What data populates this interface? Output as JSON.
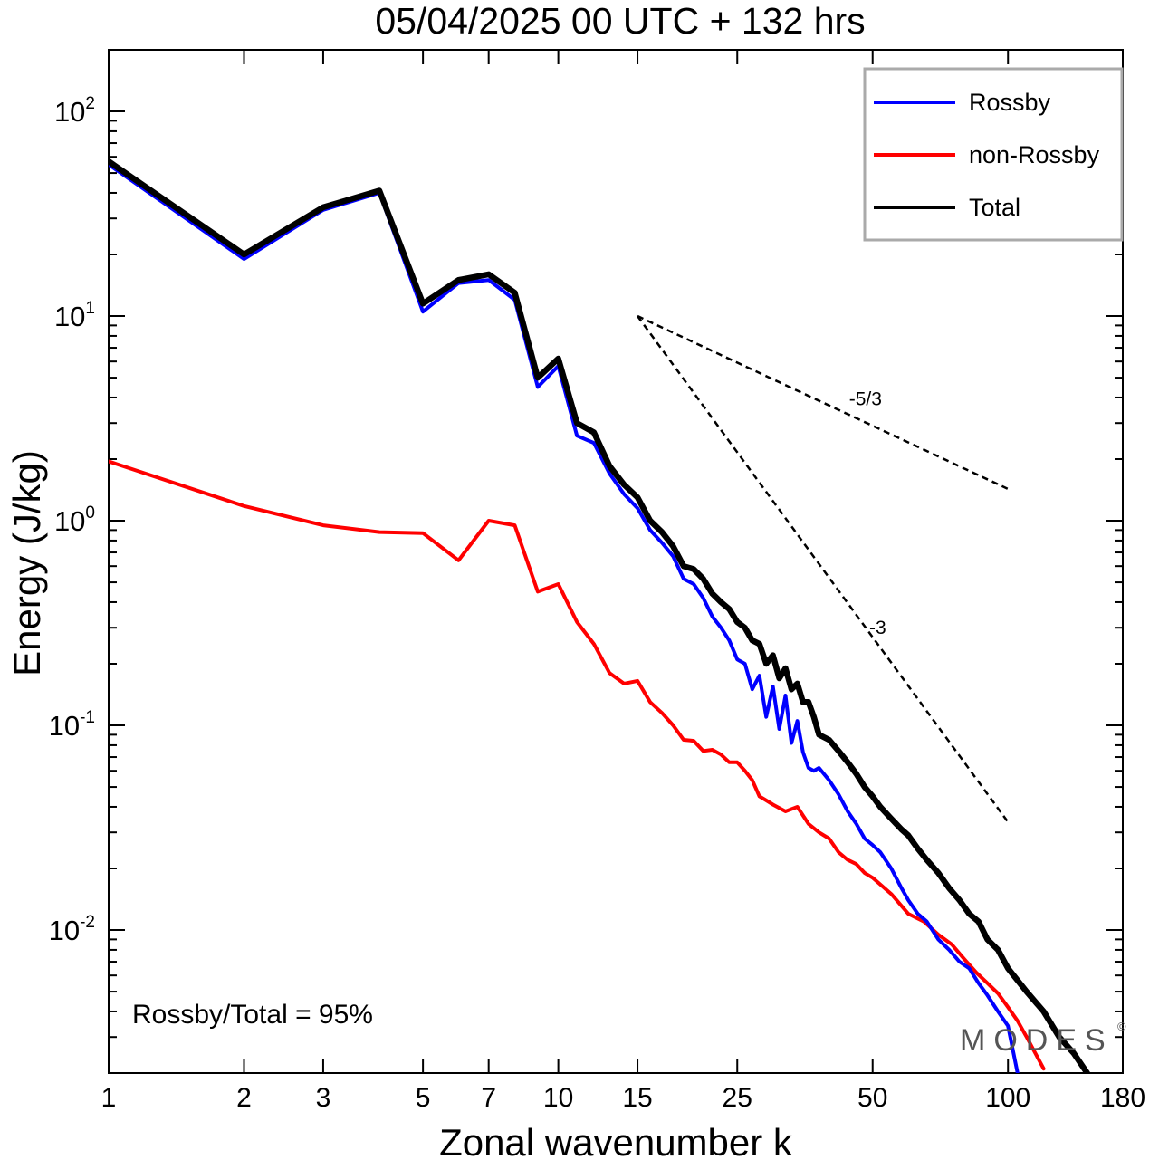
{
  "chart_data": {
    "type": "line",
    "title": "05/04/2025  00 UTC  + 132 hrs",
    "xlabel": "Zonal wavenumber k",
    "ylabel": "Energy (J/kg)",
    "xscale": "log",
    "yscale": "log",
    "xlim": [
      1,
      180
    ],
    "ylim": [
      0.002,
      200
    ],
    "xticks": [
      1,
      2,
      3,
      5,
      7,
      10,
      15,
      25,
      50,
      100,
      180
    ],
    "xtick_labels": [
      "1",
      "2",
      "3",
      "5",
      "7",
      "10",
      "15",
      "25",
      "50",
      "100",
      "180"
    ],
    "yticks": [
      {
        "value": 100,
        "base": "10",
        "exp": "2"
      },
      {
        "value": 10,
        "base": "10",
        "exp": "1"
      },
      {
        "value": 1,
        "base": "10",
        "exp": "0"
      },
      {
        "value": 0.1,
        "base": "10",
        "exp": "-1"
      },
      {
        "value": 0.01,
        "base": "10",
        "exp": "-2"
      }
    ],
    "legend_position": "top-right",
    "series": [
      {
        "name": "Rossby",
        "color": "#0000ff",
        "x": [
          1,
          2,
          3,
          4,
          5,
          6,
          7,
          8,
          9,
          10,
          11,
          12,
          13,
          14,
          15,
          16,
          17,
          18,
          19,
          20,
          21,
          22,
          23,
          24,
          25,
          26,
          27,
          28,
          29,
          30,
          31,
          32,
          33,
          34,
          35,
          36,
          37,
          38,
          40,
          42,
          44,
          46,
          48,
          50,
          52,
          55,
          58,
          60,
          63,
          66,
          70,
          74,
          78,
          82,
          86,
          90,
          95,
          100,
          105
        ],
        "y": [
          55,
          19,
          33,
          40,
          10.5,
          14.5,
          15,
          12,
          4.5,
          5.7,
          2.6,
          2.4,
          1.7,
          1.35,
          1.15,
          0.9,
          0.78,
          0.67,
          0.52,
          0.49,
          0.42,
          0.34,
          0.3,
          0.26,
          0.21,
          0.2,
          0.15,
          0.175,
          0.11,
          0.155,
          0.096,
          0.14,
          0.082,
          0.105,
          0.074,
          0.062,
          0.06,
          0.062,
          0.054,
          0.046,
          0.038,
          0.033,
          0.028,
          0.026,
          0.024,
          0.02,
          0.016,
          0.014,
          0.012,
          0.011,
          0.009,
          0.008,
          0.007,
          0.0065,
          0.0055,
          0.0048,
          0.004,
          0.0034,
          0.002
        ]
      },
      {
        "name": "non-Rossby",
        "color": "#ff0000",
        "x": [
          1,
          2,
          3,
          4,
          5,
          6,
          7,
          8,
          9,
          10,
          11,
          12,
          13,
          14,
          15,
          16,
          17,
          18,
          19,
          20,
          21,
          22,
          23,
          24,
          25,
          26,
          27,
          28,
          29,
          30,
          32,
          34,
          36,
          38,
          40,
          42,
          44,
          46,
          48,
          50,
          55,
          60,
          65,
          70,
          75,
          80,
          85,
          90,
          95,
          100,
          105,
          110,
          115,
          120
        ],
        "y": [
          1.95,
          1.18,
          0.95,
          0.88,
          0.87,
          0.64,
          1.0,
          0.95,
          0.45,
          0.49,
          0.32,
          0.25,
          0.18,
          0.16,
          0.165,
          0.13,
          0.115,
          0.1,
          0.085,
          0.084,
          0.075,
          0.076,
          0.072,
          0.066,
          0.066,
          0.06,
          0.054,
          0.045,
          0.043,
          0.041,
          0.038,
          0.04,
          0.033,
          0.03,
          0.028,
          0.024,
          0.022,
          0.021,
          0.019,
          0.018,
          0.015,
          0.012,
          0.011,
          0.0095,
          0.0085,
          0.0072,
          0.0062,
          0.0055,
          0.0049,
          0.0042,
          0.0036,
          0.003,
          0.0025,
          0.0021
        ]
      },
      {
        "name": "Total",
        "color": "#000000",
        "x": [
          1,
          2,
          3,
          4,
          5,
          6,
          7,
          8,
          9,
          10,
          11,
          12,
          13,
          14,
          15,
          16,
          17,
          18,
          19,
          20,
          21,
          22,
          23,
          24,
          25,
          26,
          27,
          28,
          29,
          30,
          31,
          32,
          33,
          34,
          35,
          36,
          37,
          38,
          40,
          42,
          44,
          46,
          48,
          50,
          52,
          55,
          58,
          60,
          63,
          66,
          70,
          74,
          78,
          82,
          86,
          90,
          95,
          100,
          110,
          120,
          130,
          140,
          150
        ],
        "y": [
          57,
          20,
          34,
          41,
          11.5,
          15,
          16,
          13,
          5,
          6.2,
          3,
          2.7,
          1.85,
          1.5,
          1.3,
          1.0,
          0.88,
          0.75,
          0.6,
          0.58,
          0.52,
          0.44,
          0.4,
          0.37,
          0.32,
          0.3,
          0.26,
          0.25,
          0.2,
          0.22,
          0.17,
          0.19,
          0.15,
          0.16,
          0.13,
          0.13,
          0.11,
          0.09,
          0.085,
          0.075,
          0.066,
          0.058,
          0.05,
          0.045,
          0.04,
          0.035,
          0.031,
          0.029,
          0.025,
          0.022,
          0.019,
          0.016,
          0.014,
          0.012,
          0.011,
          0.009,
          0.008,
          0.0065,
          0.005,
          0.004,
          0.003,
          0.0025,
          0.002
        ]
      }
    ],
    "reference_lines": [
      {
        "label": "-5/3",
        "x": [
          15,
          100
        ],
        "y": [
          10,
          1.43
        ],
        "style": "dashed",
        "color": "#000000"
      },
      {
        "label": "-3",
        "x": [
          15,
          100
        ],
        "y": [
          10,
          0.0337
        ],
        "style": "dashed",
        "color": "#000000"
      }
    ],
    "annotations": {
      "ratio": "Rossby/Total = 95%",
      "watermark": "MODES",
      "watermark_mark": "©"
    }
  }
}
